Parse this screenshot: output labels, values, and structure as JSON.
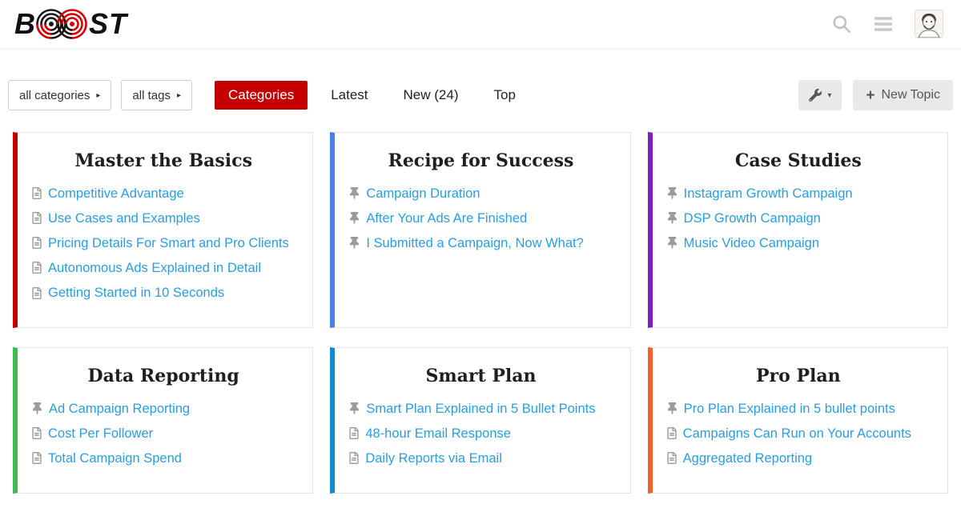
{
  "header": {
    "logo_prefix": "B",
    "logo_suffix": "ST"
  },
  "nav": {
    "category_filter_label": "all categories",
    "tag_filter_label": "all tags",
    "filter_caret": "▸",
    "tabs": [
      {
        "label": "Categories",
        "active": true
      },
      {
        "label": "Latest",
        "active": false
      },
      {
        "label": "New (24)",
        "active": false
      },
      {
        "label": "Top",
        "active": false
      }
    ],
    "wrench_caret": "▾",
    "plus_glyph": "+",
    "new_topic_label": "New Topic"
  },
  "colors": {
    "active_tab_red": "#c40000",
    "link_blue": "#2b9de3",
    "logo_red": "#d40000",
    "logo_black": "#171717"
  },
  "categories": [
    {
      "title": "Master the Basics",
      "color": "#c20000",
      "topics": [
        {
          "icon": "doc-icon",
          "label": "Competitive Advantage"
        },
        {
          "icon": "doc-icon",
          "label": "Use Cases and Examples"
        },
        {
          "icon": "doc-icon",
          "label": "Pricing Details For Smart and Pro Clients"
        },
        {
          "icon": "doc-icon",
          "label": "Autonomous Ads Explained in Detail"
        },
        {
          "icon": "doc-icon",
          "label": "Getting Started in 10 Seconds"
        }
      ]
    },
    {
      "title": "Recipe for Success",
      "color": "#4a7de8",
      "topics": [
        {
          "icon": "pin-icon",
          "label": "Campaign Duration"
        },
        {
          "icon": "pin-icon",
          "label": "After Your Ads Are Finished"
        },
        {
          "icon": "pin-icon",
          "label": "I Submitted a Campaign, Now What?"
        }
      ]
    },
    {
      "title": "Case Studies",
      "color": "#7b1fc4",
      "topics": [
        {
          "icon": "pin-icon",
          "label": "Instagram Growth Campaign"
        },
        {
          "icon": "pin-icon",
          "label": "DSP Growth Campaign"
        },
        {
          "icon": "pin-icon",
          "label": "Music Video Campaign"
        }
      ]
    },
    {
      "title": "Data Reporting",
      "color": "#3cba55",
      "topics": [
        {
          "icon": "pin-icon",
          "label": "Ad Campaign Reporting"
        },
        {
          "icon": "doc-icon",
          "label": "Cost Per Follower"
        },
        {
          "icon": "doc-icon",
          "label": "Total Campaign Spend"
        }
      ]
    },
    {
      "title": "Smart Plan",
      "color": "#128bd3",
      "topics": [
        {
          "icon": "pin-icon",
          "label": "Smart Plan Explained in 5 Bullet Points"
        },
        {
          "icon": "doc-icon",
          "label": "48-hour Email Response"
        },
        {
          "icon": "doc-icon",
          "label": "Daily Reports via Email"
        }
      ]
    },
    {
      "title": "Pro Plan",
      "color": "#f3602e",
      "topics": [
        {
          "icon": "pin-icon",
          "label": "Pro Plan Explained in 5 bullet points"
        },
        {
          "icon": "doc-icon",
          "label": "Campaigns Can Run on Your Accounts"
        },
        {
          "icon": "doc-icon",
          "label": "Aggregated Reporting"
        }
      ]
    }
  ]
}
